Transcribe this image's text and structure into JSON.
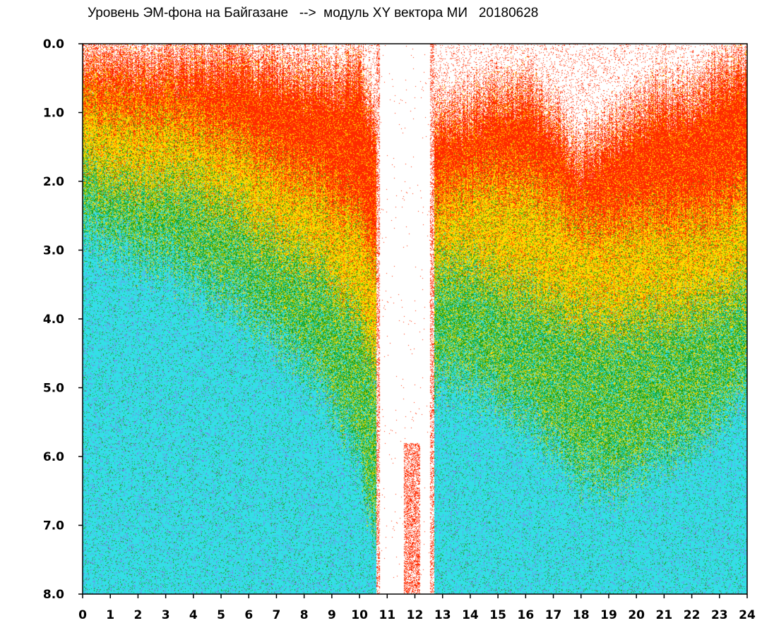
{
  "chart_data": {
    "type": "heatmap",
    "title": "Уровень ЭМ-фона на Байгазане   -->  модуль XY вектора МИ   20180628",
    "xlabel": "",
    "ylabel": "",
    "xlim": [
      0,
      24
    ],
    "ylim": [
      8.0,
      0.0
    ],
    "y_inverted": true,
    "grid": false,
    "x_ticks": [
      "0",
      "1",
      "2",
      "3",
      "4",
      "5",
      "6",
      "7",
      "8",
      "9",
      "10",
      "11",
      "12",
      "13",
      "14",
      "15",
      "16",
      "17",
      "18",
      "19",
      "20",
      "21",
      "22",
      "23",
      "24"
    ],
    "y_ticks": [
      "0.0",
      "1.0",
      "2.0",
      "3.0",
      "4.0",
      "5.0",
      "6.0",
      "7.0",
      "8.0"
    ],
    "colors": [
      "#ff2a00",
      "#ffd700",
      "#1aa31a",
      "#33dfe6",
      "#8a6fe8"
    ],
    "color_bands": [
      "red",
      "yellow",
      "green",
      "cyan",
      "violet"
    ],
    "gap": {
      "from_hour": 10.6,
      "to_hour": 12.7
    },
    "profile": {
      "hours": [
        0,
        1,
        2,
        3,
        4,
        5,
        6,
        7,
        8,
        9,
        10,
        10.5,
        13,
        14,
        15,
        16,
        17,
        18,
        19,
        20,
        21,
        22,
        23,
        24
      ],
      "red_top": [
        0.2,
        0.1,
        0.2,
        0.2,
        0.2,
        0.1,
        0.2,
        0.3,
        0.4,
        0.4,
        0.3,
        1.0,
        1.0,
        0.9,
        0.6,
        0.6,
        1.0,
        1.6,
        1.3,
        1.0,
        0.7,
        0.8,
        0.4,
        0.3
      ],
      "red_end": [
        0.8,
        0.9,
        1.0,
        1.0,
        1.2,
        1.3,
        1.5,
        1.8,
        1.9,
        2.2,
        2.5,
        3.0,
        2.2,
        2.0,
        1.9,
        2.0,
        2.2,
        2.6,
        2.7,
        2.5,
        2.5,
        2.5,
        2.4,
        2.2
      ],
      "yellow_end": [
        1.7,
        1.9,
        2.0,
        2.0,
        2.1,
        2.3,
        2.6,
        2.9,
        3.1,
        3.4,
        4.0,
        4.6,
        3.2,
        3.2,
        3.4,
        3.6,
        3.8,
        4.0,
        4.1,
        4.0,
        3.9,
        3.9,
        3.7,
        3.5
      ],
      "green_end": [
        2.6,
        2.8,
        3.0,
        3.1,
        3.4,
        3.6,
        3.9,
        4.2,
        4.6,
        5.1,
        6.0,
        7.0,
        4.8,
        4.9,
        5.1,
        5.4,
        5.8,
        6.2,
        6.4,
        6.2,
        5.9,
        5.8,
        5.4,
        5.0
      ]
    }
  }
}
